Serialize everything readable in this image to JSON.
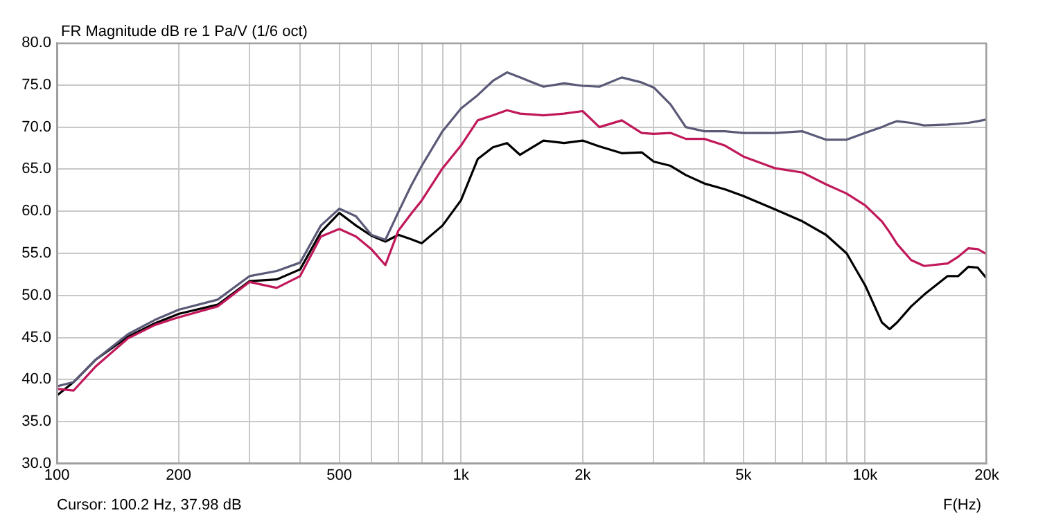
{
  "chart_data": {
    "type": "line",
    "title": "FR Magnitude dB re 1 Pa/V (1/6 oct)",
    "xlabel": "F(Hz)",
    "annotations": [
      "Cursor: 100.2 Hz, 37.98 dB"
    ],
    "log": "x",
    "grid": true,
    "legend": false,
    "marker": "none",
    "line_style": "solid",
    "xlim": [
      100,
      20000
    ],
    "ylim": [
      30,
      80
    ],
    "xticks": [
      {
        "value": 100,
        "label": "100"
      },
      {
        "value": 200,
        "label": "200"
      },
      {
        "value": 300,
        "label": null
      },
      {
        "value": 400,
        "label": null
      },
      {
        "value": 500,
        "label": "500"
      },
      {
        "value": 600,
        "label": null
      },
      {
        "value": 700,
        "label": null
      },
      {
        "value": 800,
        "label": null
      },
      {
        "value": 900,
        "label": null
      },
      {
        "value": 1000,
        "label": "1k"
      },
      {
        "value": 2000,
        "label": "2k"
      },
      {
        "value": 3000,
        "label": null
      },
      {
        "value": 4000,
        "label": null
      },
      {
        "value": 5000,
        "label": "5k"
      },
      {
        "value": 6000,
        "label": null
      },
      {
        "value": 7000,
        "label": null
      },
      {
        "value": 8000,
        "label": null
      },
      {
        "value": 9000,
        "label": null
      },
      {
        "value": 10000,
        "label": "10k"
      },
      {
        "value": 20000,
        "label": "20k"
      }
    ],
    "yticks": [
      {
        "value": 30,
        "label": "30.0"
      },
      {
        "value": 35,
        "label": "35.0"
      },
      {
        "value": 40,
        "label": "40.0"
      },
      {
        "value": 45,
        "label": "45.0"
      },
      {
        "value": 50,
        "label": "50.0"
      },
      {
        "value": 55,
        "label": "55.0"
      },
      {
        "value": 60,
        "label": "60.0"
      },
      {
        "value": 65,
        "label": "65.0"
      },
      {
        "value": 70,
        "label": "70.0"
      },
      {
        "value": 75,
        "label": "75.0"
      },
      {
        "value": 80,
        "label": "80.0"
      }
    ],
    "x": [
      100,
      110,
      125,
      150,
      175,
      200,
      250,
      300,
      350,
      400,
      450,
      500,
      550,
      600,
      650,
      700,
      750,
      800,
      900,
      1000,
      1100,
      1200,
      1300,
      1400,
      1600,
      1800,
      2000,
      2200,
      2500,
      2800,
      3000,
      3300,
      3600,
      4000,
      4500,
      5000,
      6000,
      7000,
      8000,
      9000,
      10000,
      11000,
      11500,
      12000,
      13000,
      14000,
      16000,
      17000,
      18000,
      19000,
      20000
    ],
    "series": [
      {
        "color": "#5a5a78",
        "values": [
          39.2,
          39.7,
          42.4,
          45.4,
          47.1,
          48.3,
          49.5,
          52.3,
          52.9,
          53.9,
          58.3,
          60.3,
          59.4,
          57.2,
          56.6,
          59.9,
          62.9,
          65.4,
          69.5,
          72.2,
          73.8,
          75.5,
          76.5,
          75.9,
          74.8,
          75.2,
          74.9,
          74.8,
          75.9,
          75.3,
          74.7,
          72.7,
          70.0,
          69.5,
          69.5,
          69.3,
          69.3,
          69.5,
          68.5,
          68.5,
          69.3,
          70.0,
          70.4,
          70.7,
          70.5,
          70.2,
          70.3,
          70.4,
          70.5,
          70.7,
          70.9
        ]
      },
      {
        "color": "#c0185a",
        "values": [
          38.9,
          38.7,
          41.6,
          44.9,
          46.5,
          47.4,
          48.7,
          51.6,
          50.9,
          52.3,
          57.0,
          57.9,
          57.0,
          55.5,
          53.6,
          57.7,
          59.6,
          61.3,
          65.1,
          67.8,
          70.8,
          71.4,
          72.0,
          71.6,
          71.4,
          71.6,
          71.9,
          70.0,
          70.8,
          69.3,
          69.2,
          69.3,
          68.6,
          68.6,
          67.8,
          66.5,
          65.1,
          64.6,
          63.2,
          62.1,
          60.7,
          58.8,
          57.5,
          56.1,
          54.2,
          53.5,
          53.8,
          54.6,
          55.6,
          55.5,
          54.9
        ]
      },
      {
        "color": "#000000",
        "values": [
          38.1,
          39.7,
          42.4,
          45.1,
          46.7,
          47.8,
          48.9,
          51.7,
          51.9,
          53.1,
          57.5,
          59.8,
          58.3,
          57.1,
          56.4,
          57.2,
          56.7,
          56.2,
          58.3,
          61.3,
          66.2,
          67.6,
          68.1,
          66.7,
          68.4,
          68.1,
          68.4,
          67.7,
          66.9,
          67.0,
          65.9,
          65.4,
          64.3,
          63.3,
          62.6,
          61.8,
          60.2,
          58.8,
          57.2,
          55.0,
          51.2,
          46.8,
          46.0,
          46.8,
          48.7,
          50.1,
          52.3,
          52.3,
          53.4,
          53.3,
          52.0
        ]
      }
    ]
  }
}
